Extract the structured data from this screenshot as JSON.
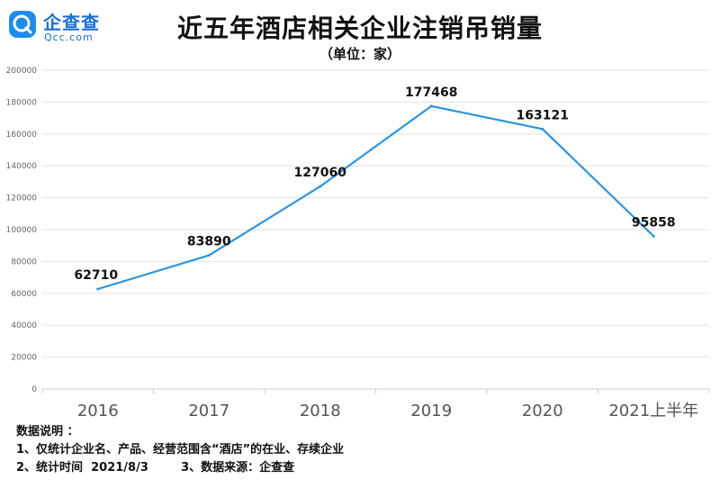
{
  "logo": {
    "brand_cn": "企查查",
    "brand_en": "Qcc.com",
    "icon": "qcc-logo-icon"
  },
  "header": {
    "title": "近五年酒店相关企业注销吊销量",
    "subtitle": "（单位：家）"
  },
  "chart_data": {
    "type": "line",
    "title": "近五年酒店相关企业注销吊销量",
    "subtitle": "（单位：家）",
    "xlabel": "",
    "ylabel": "",
    "categories": [
      "2016",
      "2017",
      "2018",
      "2019",
      "2020",
      "2021上半年"
    ],
    "series": [
      {
        "values": [
          62710,
          83890,
          127060,
          177468,
          163121,
          95858
        ],
        "color": "#2e95de"
      }
    ],
    "data_labels": [
      "62710",
      "83890",
      "127060",
      "177468",
      "163121",
      "95858"
    ],
    "ylim": [
      0,
      200000
    ],
    "y_ticks": [
      "0",
      "20000",
      "40000",
      "60000",
      "80000",
      "100000",
      "120000",
      "140000",
      "160000",
      "180000",
      "200000"
    ],
    "grid": true,
    "legend": "none"
  },
  "notes": {
    "heading": "数据说明 ：",
    "line1": "1、仅统计企业名、产品、经营范围含“酒店”的在业、存续企业",
    "line2": "2、统计时间  2021/8/3        3、数据来源：企查查"
  }
}
